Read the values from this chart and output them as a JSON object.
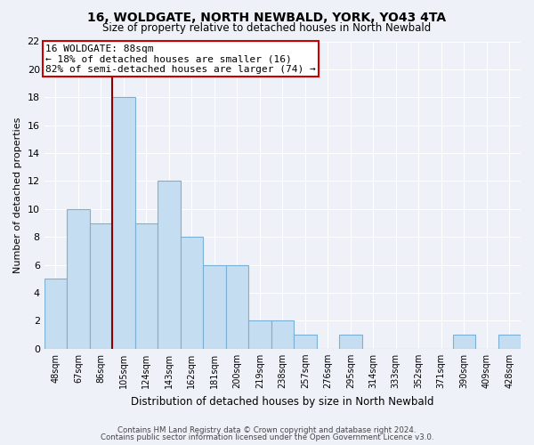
{
  "title": "16, WOLDGATE, NORTH NEWBALD, YORK, YO43 4TA",
  "subtitle": "Size of property relative to detached houses in North Newbald",
  "xlabel": "Distribution of detached houses by size in North Newbald",
  "ylabel": "Number of detached properties",
  "categories": [
    "48sqm",
    "67sqm",
    "86sqm",
    "105sqm",
    "124sqm",
    "143sqm",
    "162sqm",
    "181sqm",
    "200sqm",
    "219sqm",
    "238sqm",
    "257sqm",
    "276sqm",
    "295sqm",
    "314sqm",
    "333sqm",
    "352sqm",
    "371sqm",
    "390sqm",
    "409sqm",
    "428sqm"
  ],
  "values": [
    5,
    10,
    9,
    18,
    9,
    12,
    8,
    6,
    6,
    2,
    2,
    1,
    0,
    1,
    0,
    0,
    0,
    0,
    1,
    0,
    1
  ],
  "bar_color": "#c5ddf0",
  "bar_edgecolor": "#7ab0d4",
  "ylim": [
    0,
    22
  ],
  "yticks": [
    0,
    2,
    4,
    6,
    8,
    10,
    12,
    14,
    16,
    18,
    20,
    22
  ],
  "property_line_index": 2.5,
  "annotation_title": "16 WOLDGATE: 88sqm",
  "annotation_line1": "← 18% of detached houses are smaller (16)",
  "annotation_line2": "82% of semi-detached houses are larger (74) →",
  "property_line_color": "#8b0000",
  "annotation_box_edgecolor": "#cc0000",
  "footer_line1": "Contains HM Land Registry data © Crown copyright and database right 2024.",
  "footer_line2": "Contains public sector information licensed under the Open Government Licence v3.0.",
  "background_color": "#eef2f8",
  "grid_color": "#ffffff",
  "title_fontsize": 10,
  "subtitle_fontsize": 8.5
}
